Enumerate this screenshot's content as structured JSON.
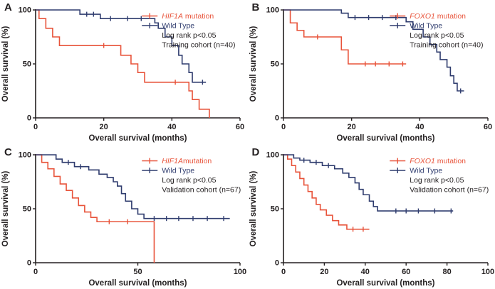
{
  "figure": {
    "background": "#ffffff",
    "xlabel": "Overall survival (months)",
    "ylabel": "Overall survival (%)"
  },
  "colors": {
    "mutation": "#e8533a",
    "wild_type": "#2f3c6e",
    "axis": "#231f20",
    "legend_text": "#231f20"
  },
  "chart_data": [
    {
      "panel": "A",
      "type": "line",
      "subtype": "kaplan-meier-step",
      "title": "Training cohort HIF1A",
      "xlabel": "Overall survival (months)",
      "ylabel": "Overall survival (%)",
      "xlim": [
        0,
        60
      ],
      "xticks": [
        0,
        20,
        40,
        60
      ],
      "ylim": [
        0,
        100
      ],
      "yticks": [
        0,
        50,
        100
      ],
      "legend": [
        {
          "series": "mutation",
          "italic": "HIF1A",
          "text": " mutation"
        },
        {
          "series": "wild_type",
          "text": "Wild Type"
        },
        {
          "text": "Log rank p<0.05"
        },
        {
          "text": "Training cohort (n=40)"
        }
      ],
      "series": [
        {
          "key": "mutation",
          "name": "HIF1A mutation",
          "points": [
            [
              0,
              100
            ],
            [
              1,
              92
            ],
            [
              3,
              83
            ],
            [
              5,
              75
            ],
            [
              7,
              67
            ],
            [
              25,
              58
            ],
            [
              28,
              50
            ],
            [
              30,
              42
            ],
            [
              32,
              33
            ],
            [
              45,
              25
            ],
            [
              46,
              17
            ],
            [
              48,
              8
            ],
            [
              51,
              0
            ]
          ],
          "censors": [
            [
              20,
              67
            ],
            [
              41,
              33
            ]
          ]
        },
        {
          "key": "wild_type",
          "name": "Wild Type",
          "points": [
            [
              0,
              100
            ],
            [
              13,
              96
            ],
            [
              19,
              92
            ],
            [
              35,
              88
            ],
            [
              36,
              83
            ],
            [
              38,
              75
            ],
            [
              40,
              67
            ],
            [
              42,
              58
            ],
            [
              43,
              50
            ],
            [
              45,
              42
            ],
            [
              46,
              33
            ],
            [
              50,
              33
            ]
          ],
          "censors": [
            [
              15,
              96
            ],
            [
              17,
              96
            ],
            [
              22,
              92
            ],
            [
              27,
              92
            ],
            [
              31,
              92
            ],
            [
              49,
              33
            ]
          ]
        }
      ]
    },
    {
      "panel": "B",
      "type": "line",
      "subtype": "kaplan-meier-step",
      "title": "Training cohort FOXO1",
      "xlabel": "Overall survival (months)",
      "ylabel": "Overall survival (%)",
      "xlim": [
        0,
        60
      ],
      "xticks": [
        0,
        20,
        40,
        60
      ],
      "ylim": [
        0,
        100
      ],
      "yticks": [
        0,
        50,
        100
      ],
      "legend": [
        {
          "series": "mutation",
          "italic": "FOXO1",
          "text": " mutation"
        },
        {
          "series": "wild_type",
          "text": "Wild Type"
        },
        {
          "text": "Log rank p<0.05"
        },
        {
          "text": "Training cohort (n=40)"
        }
      ],
      "series": [
        {
          "key": "mutation",
          "name": "FOXO1 mutation",
          "points": [
            [
              0,
              100
            ],
            [
              2,
              88
            ],
            [
              4,
              81
            ],
            [
              6,
              75
            ],
            [
              17,
              63
            ],
            [
              19,
              50
            ],
            [
              36,
              50
            ]
          ],
          "censors": [
            [
              10,
              75
            ],
            [
              24,
              50
            ],
            [
              27,
              50
            ],
            [
              31,
              50
            ],
            [
              35,
              50
            ]
          ]
        },
        {
          "key": "wild_type",
          "name": "Wild Type",
          "points": [
            [
              0,
              100
            ],
            [
              17,
              97
            ],
            [
              19,
              93
            ],
            [
              36,
              89
            ],
            [
              38,
              82
            ],
            [
              41,
              75
            ],
            [
              43,
              68
            ],
            [
              45,
              61
            ],
            [
              46,
              54
            ],
            [
              48,
              47
            ],
            [
              49,
              39
            ],
            [
              50,
              32
            ],
            [
              51,
              25
            ],
            [
              53,
              25
            ]
          ],
          "censors": [
            [
              21,
              93
            ],
            [
              25,
              93
            ],
            [
              29,
              93
            ],
            [
              33,
              93
            ],
            [
              52,
              25
            ]
          ]
        }
      ]
    },
    {
      "panel": "C",
      "type": "line",
      "subtype": "kaplan-meier-step",
      "title": "Validation cohort HIF1A",
      "xlabel": "Overall survival (months)",
      "ylabel": "Overall survival (%)",
      "xlim": [
        0,
        100
      ],
      "xticks": [
        0,
        50,
        100
      ],
      "ylim": [
        0,
        100
      ],
      "yticks": [
        0,
        50,
        100
      ],
      "legend": [
        {
          "series": "mutation",
          "italic": "HIF1A",
          "text": "mutation"
        },
        {
          "series": "wild_type",
          "text": "Wild Type"
        },
        {
          "text": "Log rank p<0.05"
        },
        {
          "text": "Validation cohort (n=67)"
        }
      ],
      "series": [
        {
          "key": "mutation",
          "name": "HIF1A mutation",
          "points": [
            [
              0,
              100
            ],
            [
              3,
              93
            ],
            [
              6,
              87
            ],
            [
              9,
              80
            ],
            [
              12,
              73
            ],
            [
              15,
              67
            ],
            [
              18,
              60
            ],
            [
              21,
              53
            ],
            [
              24,
              47
            ],
            [
              27,
              42
            ],
            [
              30,
              38
            ],
            [
              58,
              0
            ]
          ],
          "censors": [
            [
              36,
              38
            ],
            [
              45,
              38
            ]
          ]
        },
        {
          "key": "wild_type",
          "name": "Wild Type",
          "points": [
            [
              0,
              100
            ],
            [
              10,
              96
            ],
            [
              13,
              93
            ],
            [
              19,
              89
            ],
            [
              26,
              86
            ],
            [
              31,
              82
            ],
            [
              35,
              79
            ],
            [
              38,
              75
            ],
            [
              40,
              71
            ],
            [
              42,
              64
            ],
            [
              44,
              57
            ],
            [
              47,
              50
            ],
            [
              50,
              45
            ],
            [
              53,
              41
            ],
            [
              95,
              41
            ]
          ],
          "censors": [
            [
              16,
              93
            ],
            [
              22,
              89
            ],
            [
              58,
              41
            ],
            [
              64,
              41
            ],
            [
              70,
              41
            ],
            [
              77,
              41
            ],
            [
              84,
              41
            ],
            [
              92,
              41
            ]
          ]
        }
      ]
    },
    {
      "panel": "D",
      "type": "line",
      "subtype": "kaplan-meier-step",
      "title": "Validation cohort FOXO1",
      "xlabel": "Overall survival (months)",
      "ylabel": "Overall survival (%)",
      "xlim": [
        0,
        100
      ],
      "xticks": [
        0,
        20,
        40,
        60,
        80,
        100
      ],
      "ylim": [
        0,
        100
      ],
      "yticks": [
        0,
        50,
        100
      ],
      "legend": [
        {
          "series": "mutation",
          "italic": "FOXO1",
          "text": " mutation"
        },
        {
          "series": "wild_type",
          "text": "Wild Type"
        },
        {
          "text": "Log rank p<0.05"
        },
        {
          "text": "Validation cohort (n=67)"
        }
      ],
      "series": [
        {
          "key": "mutation",
          "name": "FOXO1 mutation",
          "points": [
            [
              0,
              100
            ],
            [
              2,
              96
            ],
            [
              4,
              90
            ],
            [
              6,
              84
            ],
            [
              8,
              78
            ],
            [
              10,
              72
            ],
            [
              12,
              66
            ],
            [
              14,
              60
            ],
            [
              16,
              54
            ],
            [
              18,
              49
            ],
            [
              21,
              44
            ],
            [
              24,
              39
            ],
            [
              27,
              35
            ],
            [
              31,
              31
            ],
            [
              42,
              31
            ]
          ],
          "censors": [
            [
              34,
              31
            ],
            [
              39,
              31
            ]
          ]
        },
        {
          "key": "wild_type",
          "name": "Wild Type",
          "points": [
            [
              0,
              100
            ],
            [
              5,
              97
            ],
            [
              8,
              95
            ],
            [
              13,
              93
            ],
            [
              19,
              90
            ],
            [
              25,
              87
            ],
            [
              29,
              83
            ],
            [
              32,
              79
            ],
            [
              35,
              74
            ],
            [
              37,
              68
            ],
            [
              39,
              63
            ],
            [
              42,
              57
            ],
            [
              44,
              52
            ],
            [
              46,
              48
            ],
            [
              83,
              48
            ]
          ],
          "censors": [
            [
              10,
              95
            ],
            [
              16,
              93
            ],
            [
              22,
              90
            ],
            [
              55,
              48
            ],
            [
              60,
              48
            ],
            [
              66,
              48
            ],
            [
              74,
              48
            ],
            [
              82,
              48
            ]
          ]
        }
      ]
    }
  ]
}
